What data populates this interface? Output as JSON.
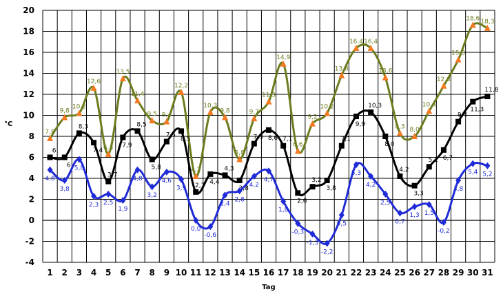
{
  "chart_data": {
    "type": "line",
    "xlabel": "Tag",
    "ylabel": "°C",
    "ylim": [
      -4,
      20
    ],
    "yticks": [
      -4,
      -2,
      0,
      2,
      4,
      6,
      8,
      10,
      12,
      14,
      16,
      18,
      20
    ],
    "grid": true,
    "legend": "none",
    "x": [
      1,
      2,
      3,
      4,
      5,
      6,
      7,
      8,
      9,
      10,
      11,
      12,
      13,
      14,
      15,
      16,
      17,
      18,
      19,
      20,
      21,
      22,
      23,
      24,
      25,
      26,
      27,
      28,
      29,
      30,
      31
    ],
    "series": [
      {
        "color": "#6b7d1e",
        "marker_color": "#f47920",
        "marker": "triangle",
        "values": [
          7.8,
          9.8,
          10.2,
          12.6,
          6.3,
          13.5,
          11.4,
          9.5,
          9.4,
          12.2,
          4.2,
          10.3,
          9.8,
          5.8,
          9.7,
          11.3,
          14.9,
          6.6,
          9.2,
          10.2,
          13.8,
          16.4,
          16.4,
          13.6,
          8.3,
          8.0,
          10.4,
          12.8,
          15.3,
          18.6,
          18.3
        ],
        "labels": [
          "7,8",
          "9,8",
          "10,2",
          "12,6",
          "6,3",
          "13,5",
          "11,4",
          "9,5",
          "9,4",
          "12,2",
          "4,2",
          "10,3",
          "9,8",
          "5,8",
          "9,7",
          "11,3",
          "14,9",
          "6,6",
          "9,2",
          "10,2",
          "13,8",
          "16,4",
          "16,4",
          "13,6",
          "8,3",
          "8,0",
          "10,4",
          "12,8",
          "15,3",
          "18,6",
          "18,3"
        ]
      },
      {
        "color": "#000000",
        "marker_color": "#000000",
        "marker": "square",
        "values": [
          6.0,
          6.0,
          8.3,
          7.4,
          3.7,
          7.9,
          8.5,
          5.8,
          7.5,
          8.5,
          2.7,
          4.4,
          4.3,
          3.8,
          7.3,
          8.6,
          7.1,
          2.6,
          3.2,
          3.8,
          7.1,
          9.9,
          10.3,
          8.0,
          4.2,
          3.3,
          5.1,
          6.7,
          9.4,
          11.3,
          11.8
        ],
        "labels": [
          "6",
          "6",
          "8,3",
          "7,4",
          "3,7",
          "7,9",
          "8,5",
          "5,8",
          "7,5",
          "8,5",
          "2,7",
          "4,4",
          "4,3",
          "3,8",
          "7,3",
          "8,6",
          "7,1",
          "2,6",
          "3,2",
          "3,8",
          "7,1",
          "9,9",
          "10,3",
          "8,0",
          "4,2",
          "3,3",
          "5,1",
          "6,7",
          "9,4",
          "11,3",
          "11,8"
        ]
      },
      {
        "color": "#1f2bd6",
        "marker_color": "#1f2bd6",
        "marker": "diamond",
        "values": [
          4.8,
          3.8,
          5.8,
          2.3,
          2.5,
          1.9,
          4.8,
          3.2,
          4.6,
          3.9,
          0.0,
          -0.6,
          2.4,
          2.8,
          4.2,
          4.7,
          1.8,
          -0.3,
          -1.3,
          -2.2,
          0.5,
          5.3,
          4.2,
          2.5,
          0.7,
          1.3,
          1.5,
          -0.2,
          3.8,
          5.4,
          5.2
        ],
        "labels": [
          "4,8",
          "3,8",
          "5,8",
          "2,3",
          "2,5",
          "1,9",
          "4,8",
          "3,2",
          "4,6",
          "3,9",
          "0,0",
          "-0,6",
          "2,4",
          "2,8",
          "4,2",
          "4,7",
          "1,8",
          "-0,3",
          "-1,3",
          "-2,2",
          "0,5",
          "5,3",
          "4,2",
          "2,5",
          "0,7",
          "1,3",
          "1,5",
          "-0,2",
          "3,8",
          "5,4",
          "5,2"
        ]
      }
    ]
  }
}
